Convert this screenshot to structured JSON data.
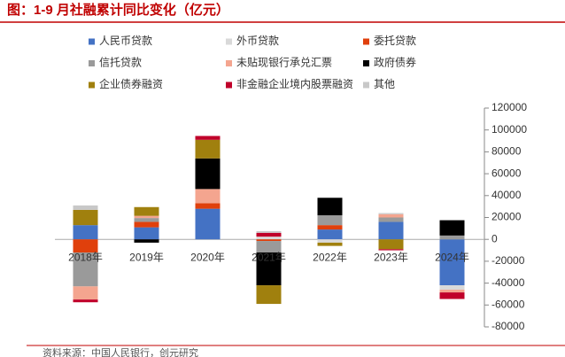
{
  "chart_data": {
    "type": "stacked_bar",
    "title": "图：1-9 月社融累计同比变化（亿元）",
    "note": "资料来源：中国人民银行，创元研究",
    "categories": [
      "2018年",
      "2019年",
      "2020年",
      "2021年",
      "2022年",
      "2023年",
      "2024年"
    ],
    "series": [
      {
        "name": "人民币贷款",
        "color": "#4472c4",
        "values": [
          13000,
          11000,
          28000,
          0,
          9000,
          16000,
          -42000
        ]
      },
      {
        "name": "外币贷款",
        "color": "#d9d9d9",
        "values": [
          0,
          0,
          0,
          2500,
          -3000,
          0,
          -4000
        ]
      },
      {
        "name": "委托贷款",
        "color": "#e0400c",
        "values": [
          -12000,
          5000,
          5000,
          -1500,
          4000,
          0,
          0
        ]
      },
      {
        "name": "信托贷款",
        "color": "#9a9a9a",
        "values": [
          -31000,
          3500,
          0,
          -10500,
          9000,
          4000,
          3500
        ]
      },
      {
        "name": "未贴现银行承兑汇票",
        "color": "#f4a58f",
        "values": [
          -12000,
          2000,
          13000,
          0,
          0,
          3000,
          -2500
        ]
      },
      {
        "name": "政府债券",
        "color": "#000000",
        "values": [
          0,
          -3000,
          28000,
          -30000,
          16000,
          0,
          14000
        ]
      },
      {
        "name": "企业债券融资",
        "color": "#a0800e",
        "values": [
          14000,
          8000,
          17000,
          -17000,
          -3000,
          -9000,
          0
        ]
      },
      {
        "name": "非金融企业境内股票融资",
        "color": "#c0002a",
        "values": [
          -2500,
          0,
          3500,
          3500,
          0,
          -1000,
          -6000
        ]
      },
      {
        "name": "其他",
        "color": "#c8c8c8",
        "values": [
          4000,
          0,
          0,
          1500,
          0,
          1000,
          0
        ]
      }
    ],
    "ylim": [
      -80000,
      120000
    ],
    "yticks": [
      -80000,
      -60000,
      -40000,
      -20000,
      0,
      20000,
      40000,
      60000,
      80000,
      100000,
      120000
    ],
    "axis_side": "right"
  }
}
